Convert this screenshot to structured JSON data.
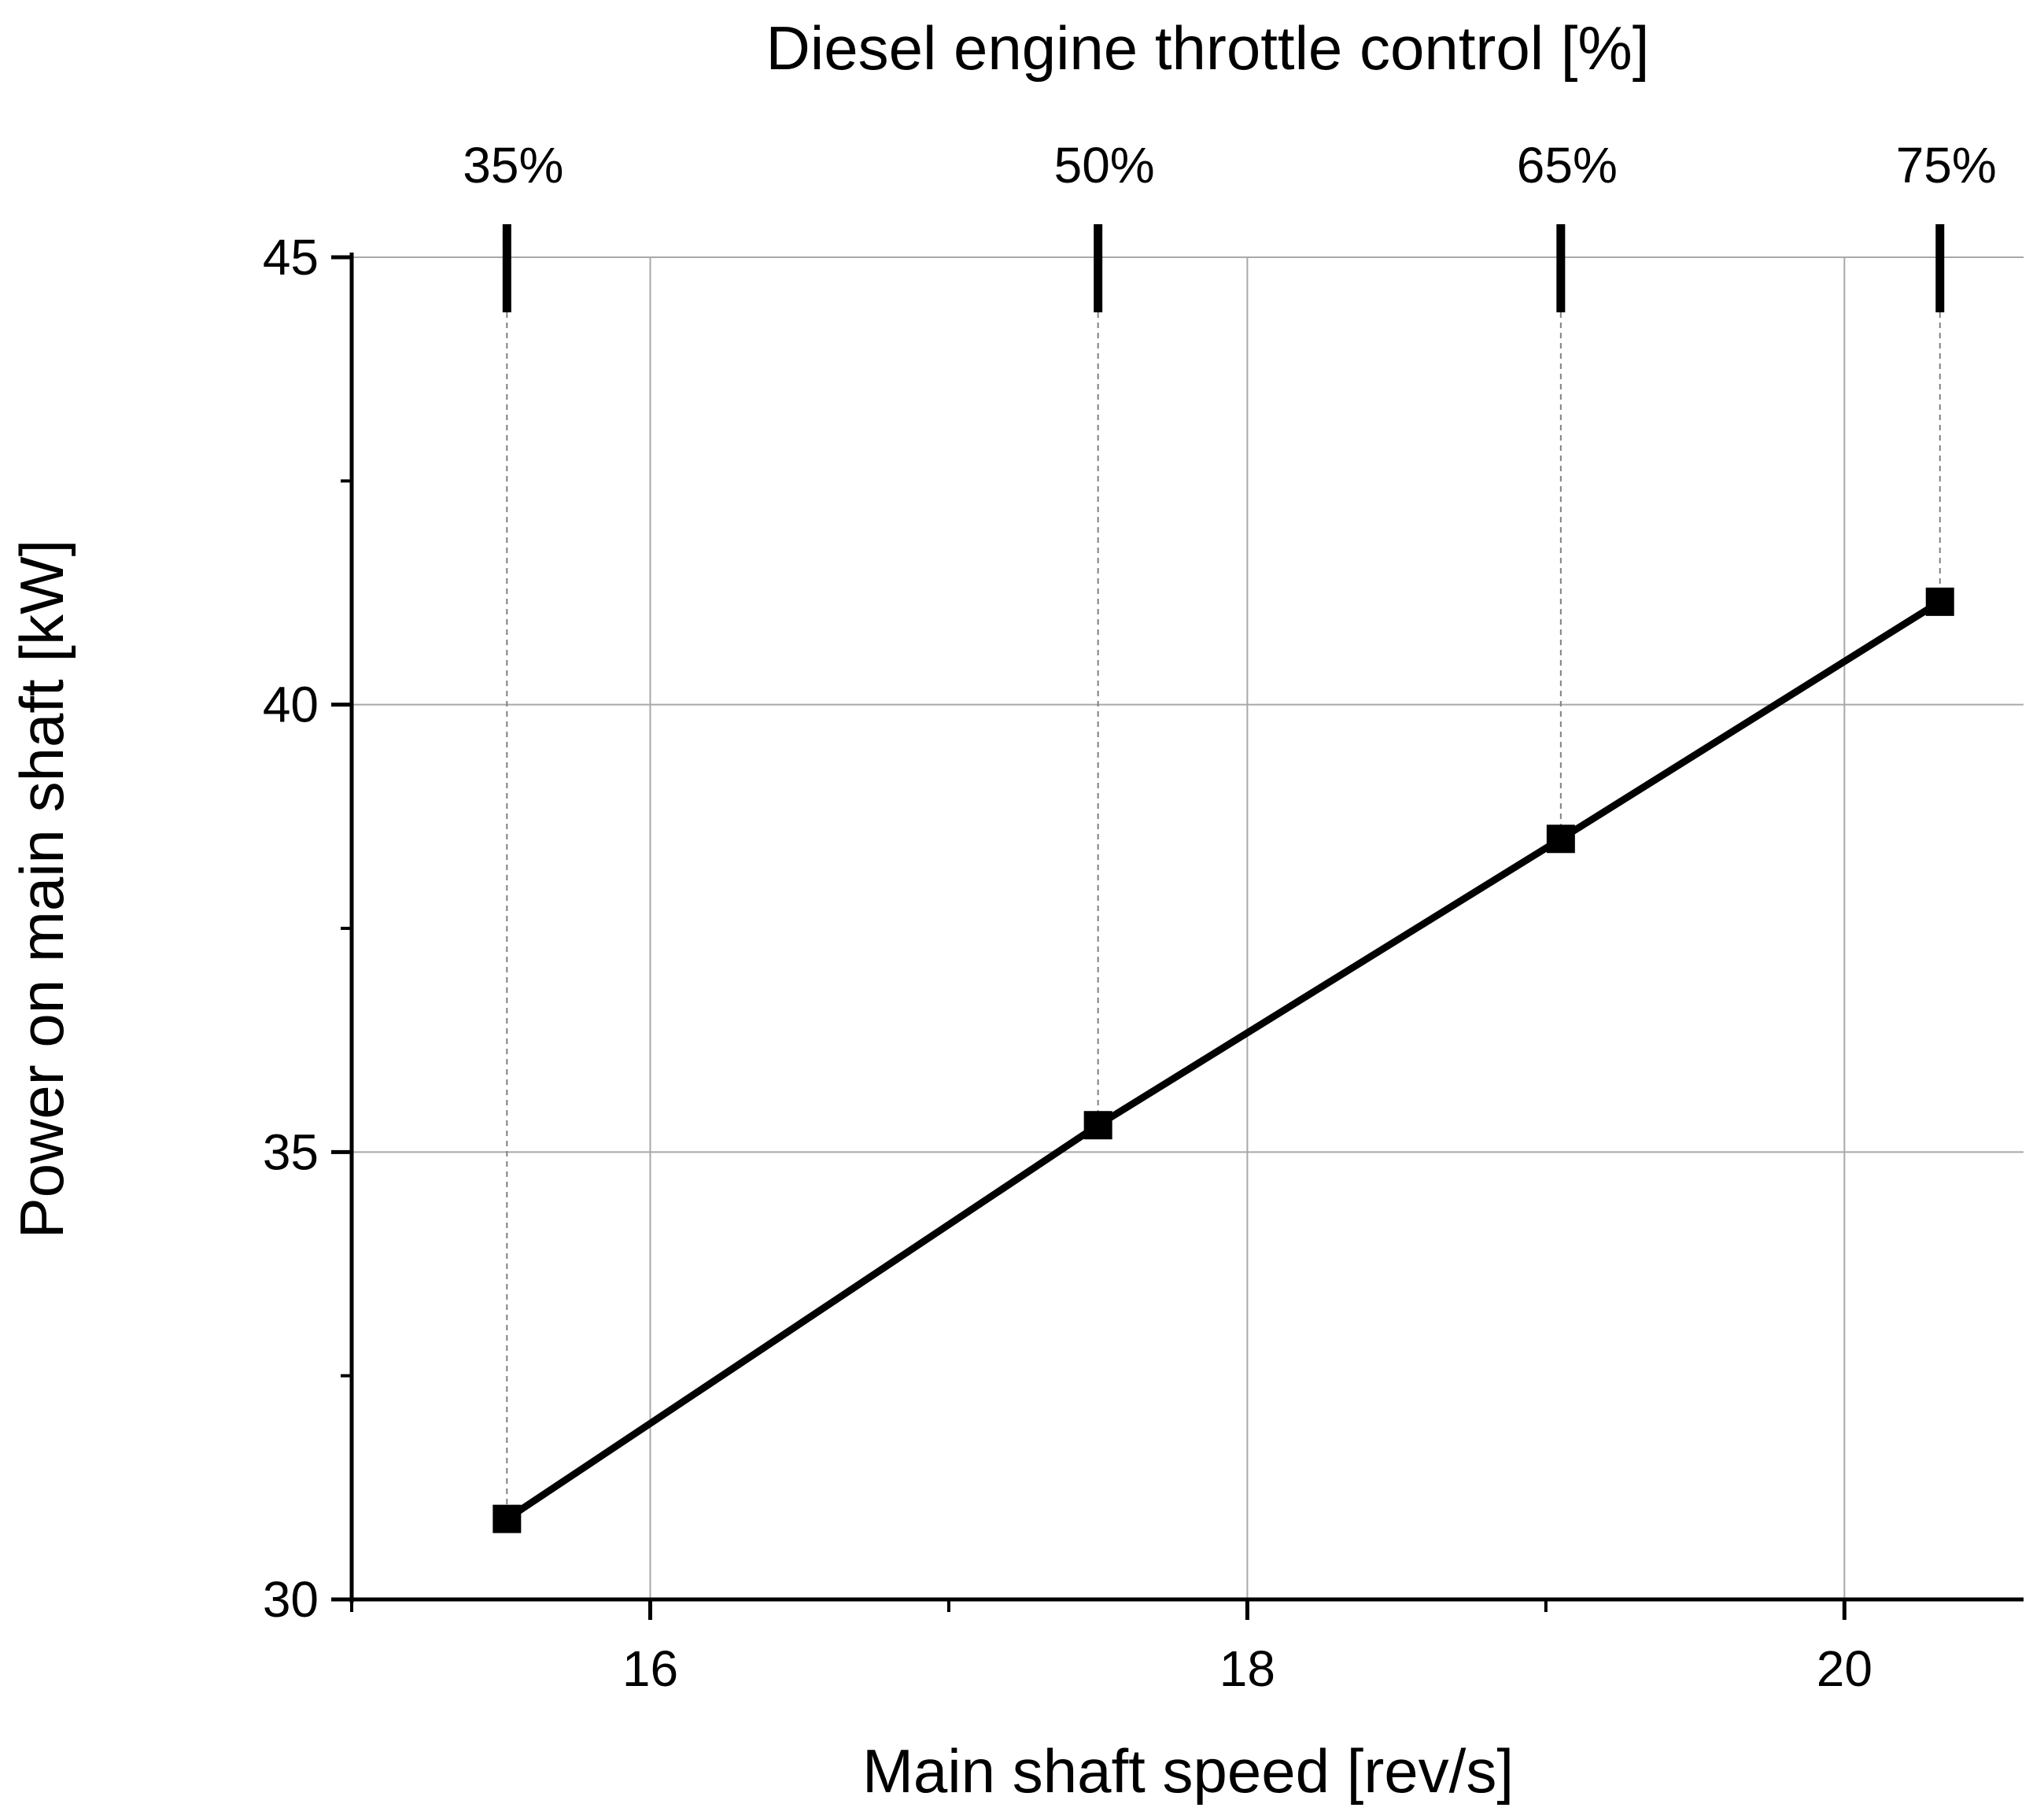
{
  "chart_data": {
    "type": "line",
    "title": "",
    "xlabel": "Main shaft speed [rev/s]",
    "ylabel": "Power on main shaft [kW]",
    "top_axis_label": "Diesel engine throttle control  [%]",
    "xlim": [
      15,
      20.6
    ],
    "ylim": [
      30,
      45
    ],
    "x_ticks": [
      16,
      18,
      20
    ],
    "x_tick_labels": [
      "16",
      "18",
      "20"
    ],
    "x_minor_ticks": [
      15,
      17,
      19
    ],
    "y_ticks": [
      30,
      35,
      40,
      45
    ],
    "y_tick_labels": [
      "30",
      "35",
      "40",
      "45"
    ],
    "y_minor_ticks": [
      32.5,
      37.5,
      42.5
    ],
    "grid": true,
    "legend": "none",
    "series": [
      {
        "x": [
          15.52,
          17.5,
          19.05,
          20.32
        ],
        "y": [
          30.9,
          35.3,
          38.5,
          41.15
        ],
        "marker": "square",
        "color": "#000000"
      }
    ],
    "top_ticks": [
      {
        "x": 15.52,
        "label": "35%"
      },
      {
        "x": 17.5,
        "label": "50%"
      },
      {
        "x": 19.05,
        "label": "65%"
      },
      {
        "x": 20.32,
        "label": "75%"
      }
    ]
  }
}
